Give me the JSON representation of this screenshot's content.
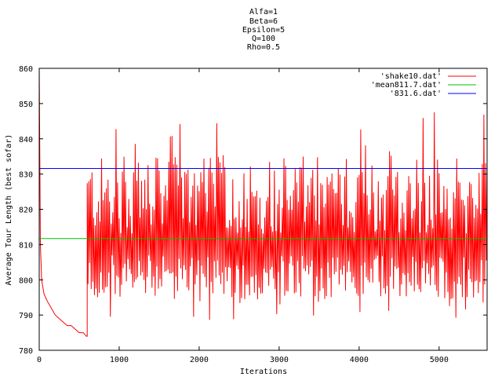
{
  "chart_data": {
    "type": "line",
    "title_lines": [
      "Alfa=1",
      "Beta=6",
      "Epsilon=5",
      "Q=100",
      "Rho=0.5"
    ],
    "xlabel": "Iterations",
    "ylabel": "Average Tour Length (best sofar)",
    "xlim": [
      0,
      5600
    ],
    "ylim": [
      780,
      860
    ],
    "xticks": [
      0,
      1000,
      2000,
      3000,
      4000,
      5000
    ],
    "yticks": [
      780,
      790,
      800,
      810,
      820,
      830,
      840,
      850,
      860
    ],
    "grid": false,
    "legend_position": "top-right",
    "series": [
      {
        "name": "'shake10.dat'",
        "color": "#ff0000",
        "kind": "noisy",
        "x": [
          0,
          15,
          30,
          60,
          100,
          150,
          200,
          250,
          300,
          350,
          400,
          450,
          500,
          550,
          590,
          600
        ],
        "y": [
          860,
          810,
          800,
          796,
          794,
          792,
          790,
          789,
          788,
          787,
          787,
          786,
          785,
          785,
          784,
          784
        ],
        "noisy_start": 600,
        "noisy_end": 5600,
        "noisy_step": 10,
        "noisy_center": 810,
        "noisy_low": 788,
        "noisy_high": 849
      },
      {
        "name": "'mean811.7.dat'",
        "color": "#00c000",
        "kind": "constant",
        "y": 811.7
      },
      {
        "name": "'831.6.dat'",
        "color": "#0000ff",
        "kind": "constant",
        "y": 831.6
      }
    ]
  }
}
